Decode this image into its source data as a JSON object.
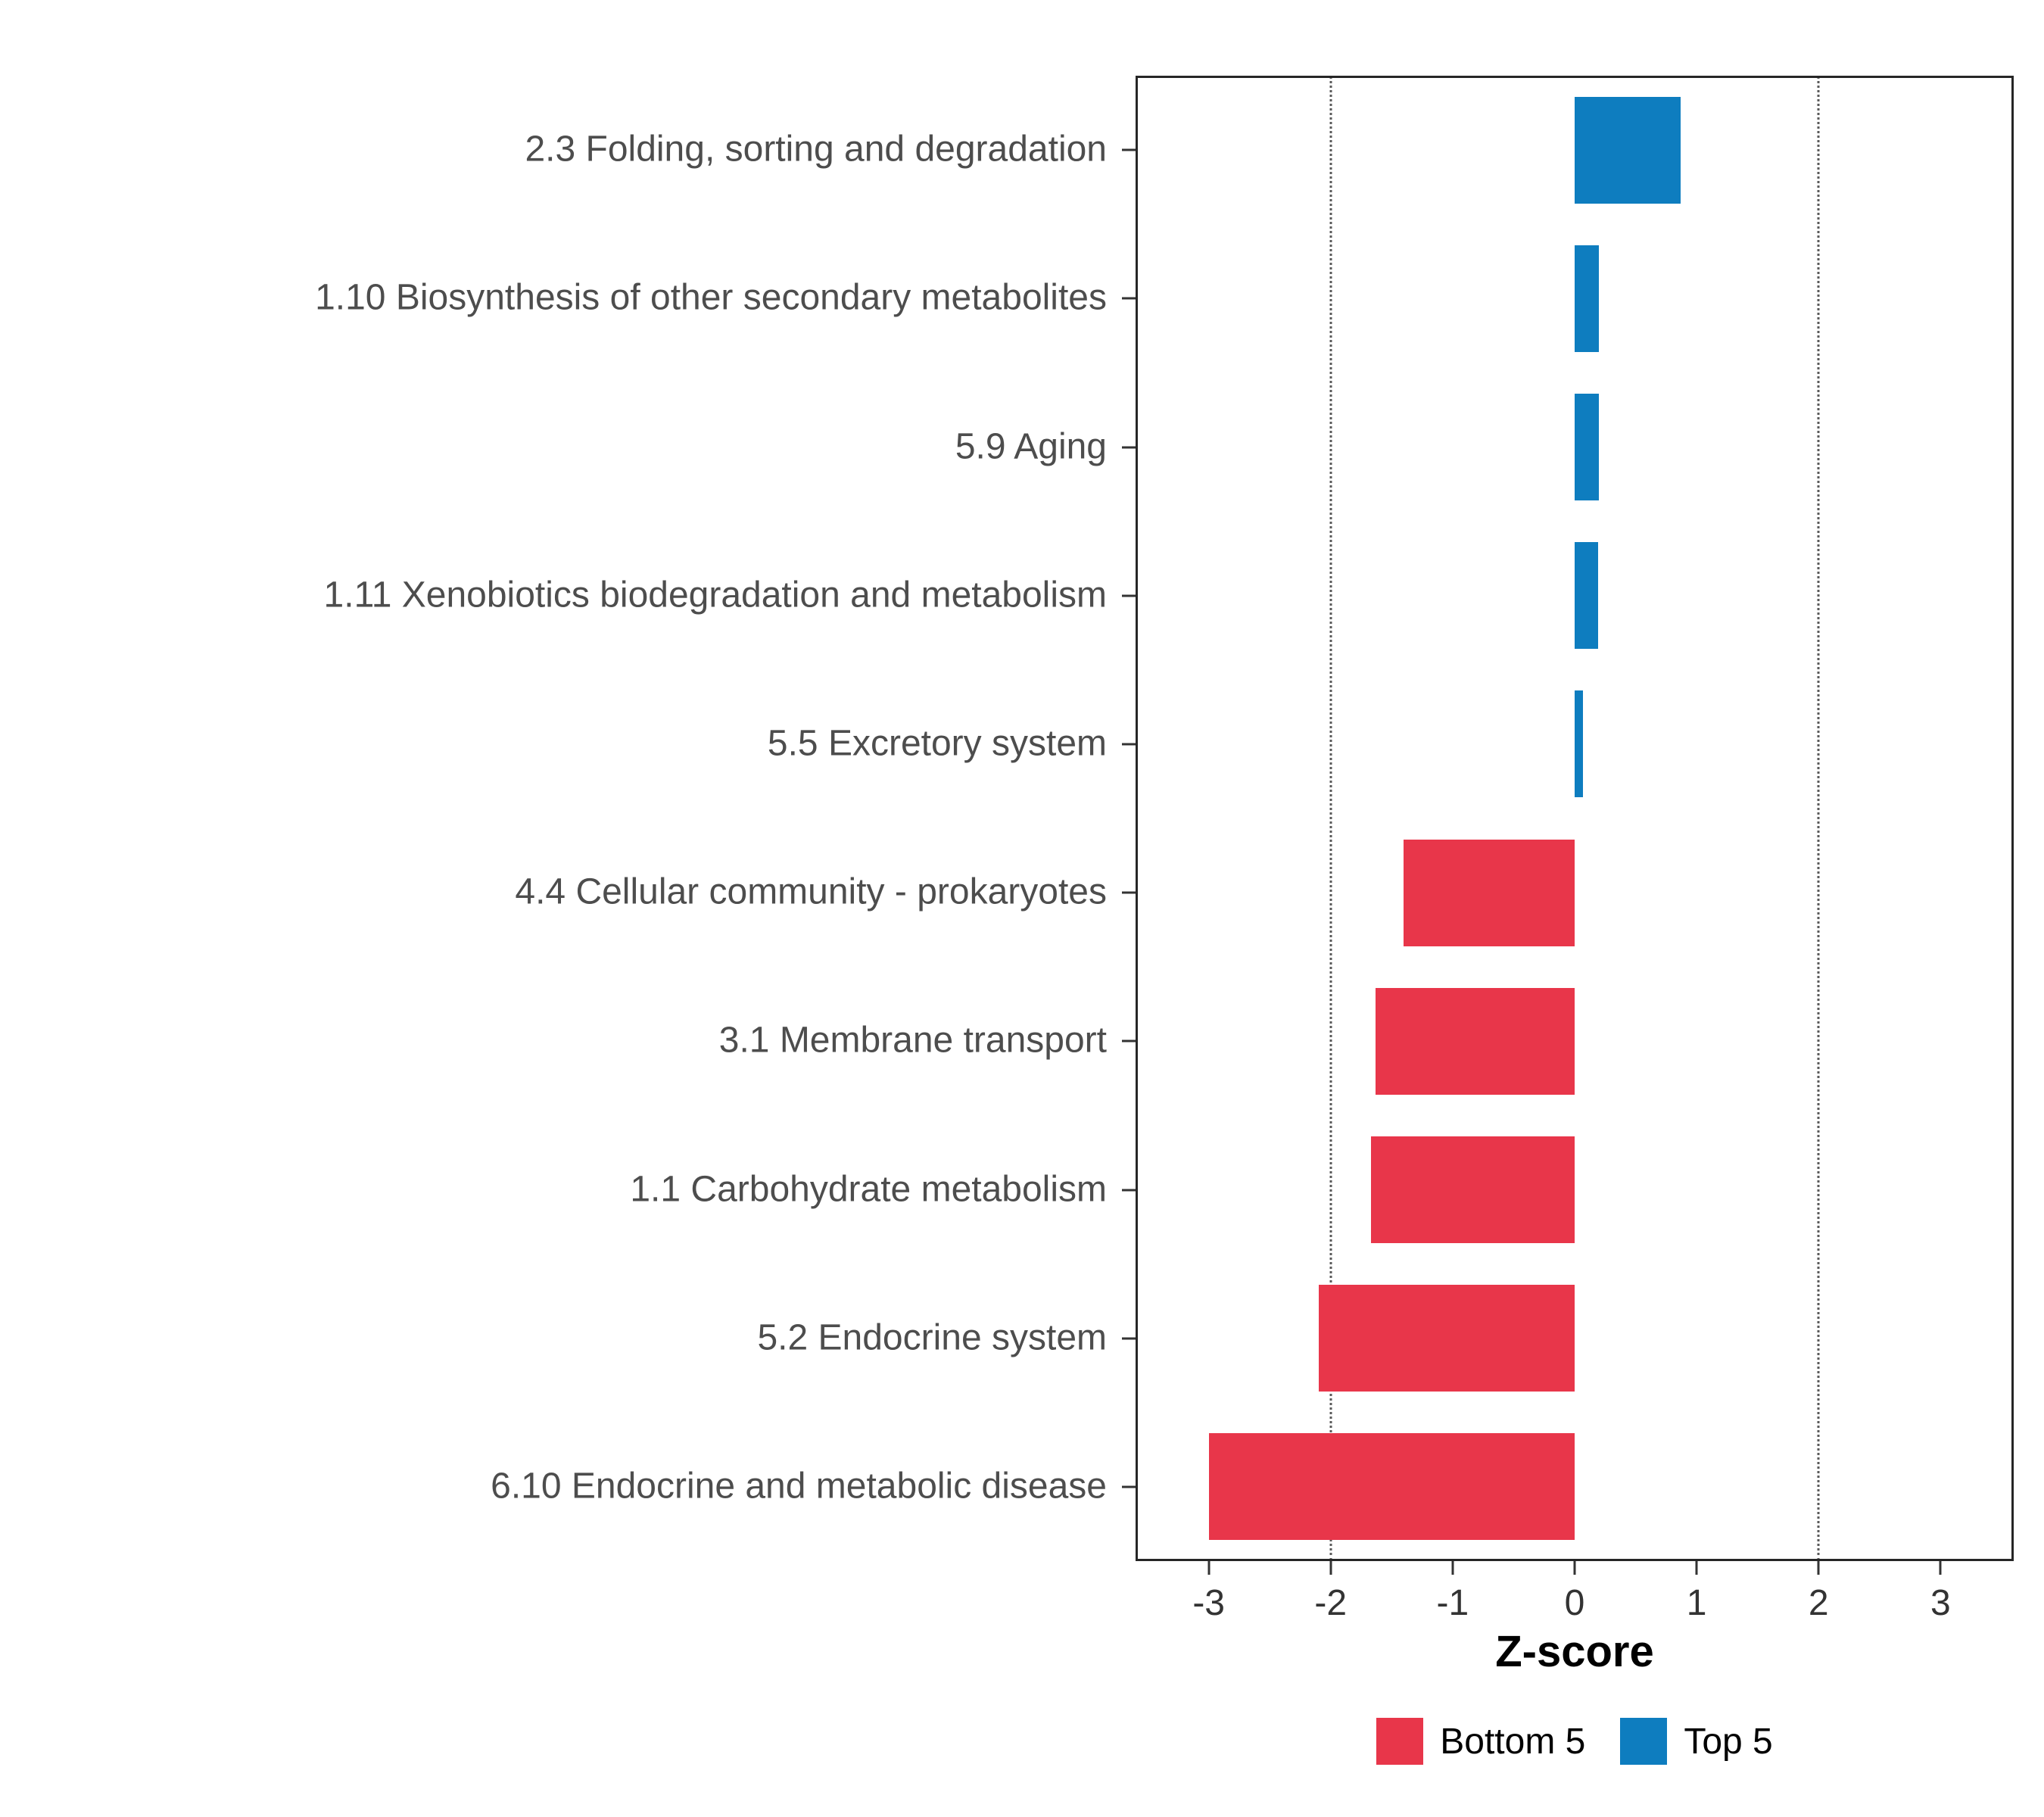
{
  "chart_data": {
    "type": "bar",
    "orientation": "horizontal",
    "title": "",
    "xlabel": "Z-score",
    "xlim": [
      -3.6,
      3.6
    ],
    "xticks": [
      -3,
      -2,
      -1,
      0,
      1,
      2,
      3
    ],
    "reference_lines": [
      -2,
      2
    ],
    "grid": "off",
    "legend_position": "bottom",
    "categories": [
      "2.3 Folding, sorting and degradation",
      "1.10 Biosynthesis of other secondary metabolites",
      "5.9 Aging",
      "1.11 Xenobiotics biodegradation and metabolism",
      "5.5 Excretory system",
      "4.4 Cellular community - prokaryotes",
      "3.1 Membrane transport",
      "1.1 Carbohydrate metabolism",
      "5.2 Endocrine system",
      "6.10 Endocrine and metabolic disease"
    ],
    "values": [
      0.87,
      0.2,
      0.2,
      0.19,
      0.07,
      -1.4,
      -1.63,
      -1.67,
      -2.1,
      -3.0
    ],
    "groups": [
      "top5",
      "top5",
      "top5",
      "top5",
      "top5",
      "bottom5",
      "bottom5",
      "bottom5",
      "bottom5",
      "bottom5"
    ],
    "colors": {
      "bottom5": "#E8364A",
      "top5": "#0E7DBF"
    },
    "legend": [
      {
        "label": "Bottom 5",
        "group": "bottom5",
        "color": "#E8364A"
      },
      {
        "label": "Top 5",
        "group": "top5",
        "color": "#0E7DBF"
      }
    ]
  }
}
